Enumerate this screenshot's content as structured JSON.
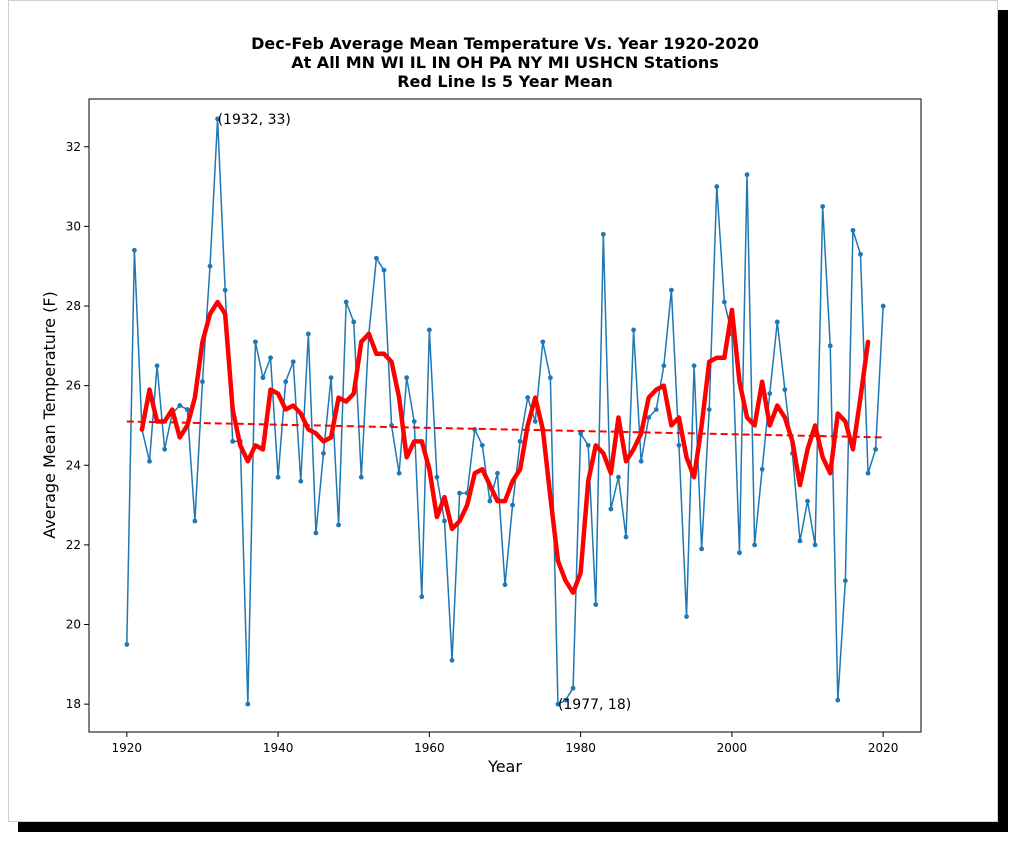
{
  "chart_data": {
    "type": "line",
    "title_lines": [
      "Dec-Feb Average Mean Temperature Vs. Year 1920-2020",
      "At All MN WI IL IN OH PA NY MI USHCN Stations",
      "Red Line Is 5 Year Mean"
    ],
    "xlabel": "Year",
    "ylabel": "Average Mean Temperature (F)",
    "xlim": [
      1915,
      2025
    ],
    "ylim": [
      17.3,
      33.2
    ],
    "xticks": [
      1920,
      1940,
      1960,
      1980,
      2000,
      2020
    ],
    "yticks": [
      18,
      20,
      22,
      24,
      26,
      28,
      30,
      32
    ],
    "grid": false,
    "series": [
      {
        "style": "line-with-points",
        "color": "#1f77b4",
        "x": [
          1920,
          1921,
          1922,
          1923,
          1924,
          1925,
          1926,
          1927,
          1928,
          1929,
          1930,
          1931,
          1932,
          1933,
          1934,
          1935,
          1936,
          1937,
          1938,
          1939,
          1940,
          1941,
          1942,
          1943,
          1944,
          1945,
          1946,
          1947,
          1948,
          1949,
          1950,
          1951,
          1952,
          1953,
          1954,
          1955,
          1956,
          1957,
          1958,
          1959,
          1960,
          1961,
          1962,
          1963,
          1964,
          1965,
          1966,
          1967,
          1968,
          1969,
          1970,
          1971,
          1972,
          1973,
          1974,
          1975,
          1976,
          1977,
          1978,
          1979,
          1980,
          1981,
          1982,
          1983,
          1984,
          1985,
          1986,
          1987,
          1988,
          1989,
          1990,
          1991,
          1992,
          1993,
          1994,
          1995,
          1996,
          1997,
          1998,
          1999,
          2000,
          2001,
          2002,
          2003,
          2004,
          2005,
          2006,
          2007,
          2008,
          2009,
          2010,
          2011,
          2012,
          2013,
          2014,
          2015,
          2016,
          2017,
          2018,
          2019,
          2020
        ],
        "y": [
          19.5,
          29.4,
          24.9,
          24.1,
          26.5,
          24.4,
          25.3,
          25.5,
          25.4,
          22.6,
          26.1,
          29.0,
          32.7,
          28.4,
          24.6,
          24.6,
          18.0,
          27.1,
          26.2,
          26.7,
          23.7,
          26.1,
          26.6,
          23.6,
          27.3,
          22.3,
          24.3,
          26.2,
          22.5,
          28.1,
          27.6,
          23.7,
          27.3,
          29.2,
          28.9,
          25.0,
          23.8,
          26.2,
          25.1,
          20.7,
          27.4,
          23.7,
          22.6,
          19.1,
          23.3,
          23.3,
          24.9,
          24.5,
          23.1,
          23.8,
          21.0,
          23.0,
          24.6,
          25.7,
          25.1,
          27.1,
          26.2,
          18.0,
          18.1,
          18.4,
          24.8,
          24.5,
          20.5,
          29.8,
          22.9,
          23.7,
          22.2,
          27.4,
          24.1,
          25.2,
          25.4,
          26.5,
          28.4,
          24.5,
          20.2,
          26.5,
          21.9,
          25.4,
          31.0,
          28.1,
          27.3,
          21.8,
          31.3,
          22.0,
          23.9,
          25.8,
          27.6,
          25.9,
          24.3,
          22.1,
          23.1,
          22.0,
          30.5,
          27.0,
          18.1,
          21.1,
          29.9,
          29.3,
          23.8,
          24.4,
          28.0
        ]
      },
      {
        "style": "thick-line",
        "color": "#ff0000",
        "x": [
          1922,
          1923,
          1924,
          1925,
          1926,
          1927,
          1928,
          1929,
          1930,
          1931,
          1932,
          1933,
          1934,
          1935,
          1936,
          1937,
          1938,
          1939,
          1940,
          1941,
          1942,
          1943,
          1944,
          1945,
          1946,
          1947,
          1948,
          1949,
          1950,
          1951,
          1952,
          1953,
          1954,
          1955,
          1956,
          1957,
          1958,
          1959,
          1960,
          1961,
          1962,
          1963,
          1964,
          1965,
          1966,
          1967,
          1968,
          1969,
          1970,
          1971,
          1972,
          1973,
          1974,
          1975,
          1976,
          1977,
          1978,
          1979,
          1980,
          1981,
          1982,
          1983,
          1984,
          1985,
          1986,
          1987,
          1988,
          1989,
          1990,
          1991,
          1992,
          1993,
          1994,
          1995,
          1996,
          1997,
          1998,
          1999,
          2000,
          2001,
          2002,
          2003,
          2004,
          2005,
          2006,
          2007,
          2008,
          2009,
          2010,
          2011,
          2012,
          2013,
          2014,
          2015,
          2016,
          2017,
          2018
        ],
        "y": [
          24.9,
          25.9,
          25.1,
          25.1,
          25.4,
          24.7,
          25.0,
          25.7,
          27.1,
          27.8,
          28.1,
          27.8,
          25.4,
          24.5,
          24.1,
          24.5,
          24.4,
          25.9,
          25.8,
          25.4,
          25.5,
          25.3,
          24.9,
          24.8,
          24.6,
          24.7,
          25.7,
          25.6,
          25.8,
          27.1,
          27.3,
          26.8,
          26.8,
          26.6,
          25.7,
          24.2,
          24.6,
          24.6,
          23.9,
          22.7,
          23.2,
          22.4,
          22.6,
          23.0,
          23.8,
          23.9,
          23.5,
          23.1,
          23.1,
          23.6,
          23.9,
          25.0,
          25.7,
          24.9,
          23.2,
          21.6,
          21.1,
          20.8,
          21.3,
          23.6,
          24.5,
          24.3,
          23.8,
          25.2,
          24.1,
          24.4,
          24.8,
          25.7,
          25.9,
          26.0,
          25.0,
          25.2,
          24.2,
          23.7,
          25.0,
          26.6,
          26.7,
          26.7,
          27.9,
          26.1,
          25.2,
          25.0,
          26.1,
          25.0,
          25.5,
          25.2,
          24.6,
          23.5,
          24.4,
          25.0,
          24.2,
          23.8,
          25.3,
          25.1,
          24.4,
          25.7,
          27.1
        ]
      },
      {
        "style": "dashed-trend",
        "color": "#ff0000",
        "x": [
          1920,
          2020
        ],
        "y": [
          25.1,
          24.7
        ]
      }
    ],
    "annotations": [
      {
        "text": "(1932, 33)",
        "x": 1932,
        "y": 32.7
      },
      {
        "text": "(1977, 18)",
        "x": 1977,
        "y": 18.0
      }
    ]
  }
}
